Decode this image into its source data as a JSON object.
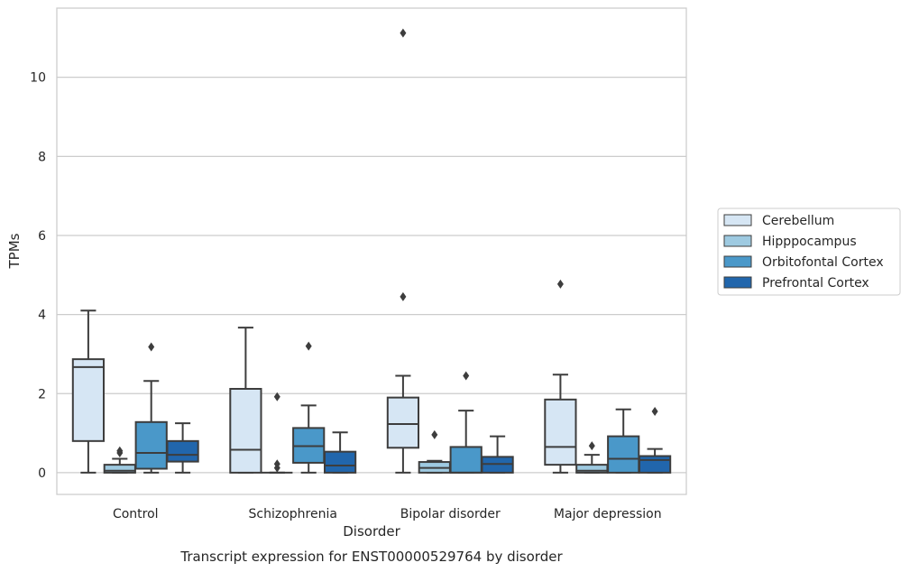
{
  "chart_data": {
    "type": "box",
    "title": "",
    "caption": "Transcript expression for ENST00000529764 by disorder",
    "xlabel": "Disorder",
    "ylabel": "TPMs",
    "ylim": [
      -0.55,
      11.75
    ],
    "yticks": [
      0,
      2,
      4,
      6,
      8,
      10
    ],
    "grid": "horizontal",
    "legend_position": "right",
    "categories": [
      "Control",
      "Schizophrenia",
      "Bipolar disorder",
      "Major depression"
    ],
    "series": [
      {
        "name": "Cerebellum",
        "color": "#d6e6f4",
        "boxes": [
          {
            "whislo": 0,
            "q1": 0.8,
            "med": 2.67,
            "q3": 2.87,
            "whishi": 4.1,
            "fliers": []
          },
          {
            "whislo": 0,
            "q1": 0,
            "med": 0.58,
            "q3": 2.12,
            "whishi": 3.67,
            "fliers": []
          },
          {
            "whislo": 0,
            "q1": 0.63,
            "med": 1.23,
            "q3": 1.9,
            "whishi": 2.45,
            "fliers": [
              4.45,
              11.12
            ]
          },
          {
            "whislo": 0,
            "q1": 0.2,
            "med": 0.65,
            "q3": 1.85,
            "whishi": 2.48,
            "fliers": [
              4.77
            ]
          }
        ]
      },
      {
        "name": "Hipppocampus",
        "color": "#9ecae1",
        "boxes": [
          {
            "whislo": 0,
            "q1": 0,
            "med": 0.05,
            "q3": 0.2,
            "whishi": 0.35,
            "fliers": [
              0.5,
              0.55
            ]
          },
          {
            "whislo": 0,
            "q1": 0,
            "med": 0,
            "q3": 0,
            "whishi": 0,
            "fliers": [
              0.12,
              0.22,
              1.92
            ]
          },
          {
            "whislo": 0,
            "q1": 0,
            "med": 0.12,
            "q3": 0.27,
            "whishi": 0.3,
            "fliers": [
              0.96
            ]
          },
          {
            "whislo": 0,
            "q1": 0,
            "med": 0.05,
            "q3": 0.2,
            "whishi": 0.45,
            "fliers": [
              0.68
            ]
          }
        ]
      },
      {
        "name": "Orbitofontal Cortex",
        "color": "#4a98c9",
        "boxes": [
          {
            "whislo": 0,
            "q1": 0.1,
            "med": 0.5,
            "q3": 1.28,
            "whishi": 2.32,
            "fliers": [
              3.18
            ]
          },
          {
            "whislo": 0,
            "q1": 0.25,
            "med": 0.67,
            "q3": 1.13,
            "whishi": 1.7,
            "fliers": [
              3.2
            ]
          },
          {
            "whislo": 0,
            "q1": 0,
            "med": 0,
            "q3": 0.65,
            "whishi": 1.57,
            "fliers": [
              2.45
            ]
          },
          {
            "whislo": 0,
            "q1": 0,
            "med": 0.35,
            "q3": 0.92,
            "whishi": 1.6,
            "fliers": []
          }
        ]
      },
      {
        "name": "Prefrontal Cortex",
        "color": "#2166ac",
        "boxes": [
          {
            "whislo": 0,
            "q1": 0.28,
            "med": 0.45,
            "q3": 0.8,
            "whishi": 1.25,
            "fliers": []
          },
          {
            "whislo": 0,
            "q1": 0,
            "med": 0.18,
            "q3": 0.53,
            "whishi": 1.02,
            "fliers": []
          },
          {
            "whislo": 0,
            "q1": 0,
            "med": 0.22,
            "q3": 0.4,
            "whishi": 0.92,
            "fliers": []
          },
          {
            "whislo": 0,
            "q1": 0,
            "med": 0.32,
            "q3": 0.42,
            "whishi": 0.6,
            "fliers": [
              1.55
            ]
          }
        ]
      }
    ]
  }
}
